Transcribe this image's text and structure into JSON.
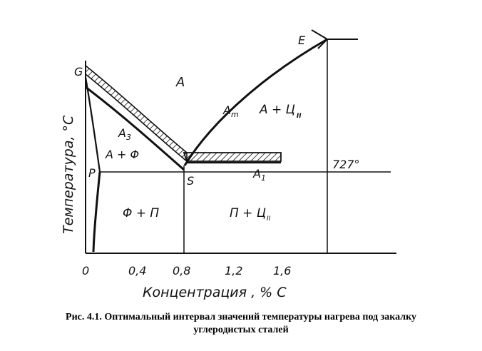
{
  "diagram": {
    "y_axis_label": "Температура, °C",
    "x_axis_label": "Концентрация , % С",
    "x_ticks": [
      "0",
      "0,4",
      "0,8",
      "1,2",
      "1,6"
    ],
    "temperature_marker": "727°",
    "points": {
      "G": "G",
      "E": "E",
      "P": "P",
      "S": "S"
    },
    "lines": {
      "A3": "A",
      "A3_sub": "3",
      "Am": "A",
      "Am_sub": "m",
      "A1": "A",
      "A1_sub": "1"
    },
    "regions": {
      "austenite": "A",
      "austenite_cementite": "A + Ц",
      "austenite_ferrite": "A + Φ",
      "ferrite_pearlite": "Φ + П",
      "pearlite_cementite": "П + Ц",
      "cementite_sub": "II"
    }
  },
  "caption": {
    "line1": "Рис. 4.1. Оптимальный интервал значений температуры нагрева под закалку",
    "line2": "углеродистых сталей"
  }
}
